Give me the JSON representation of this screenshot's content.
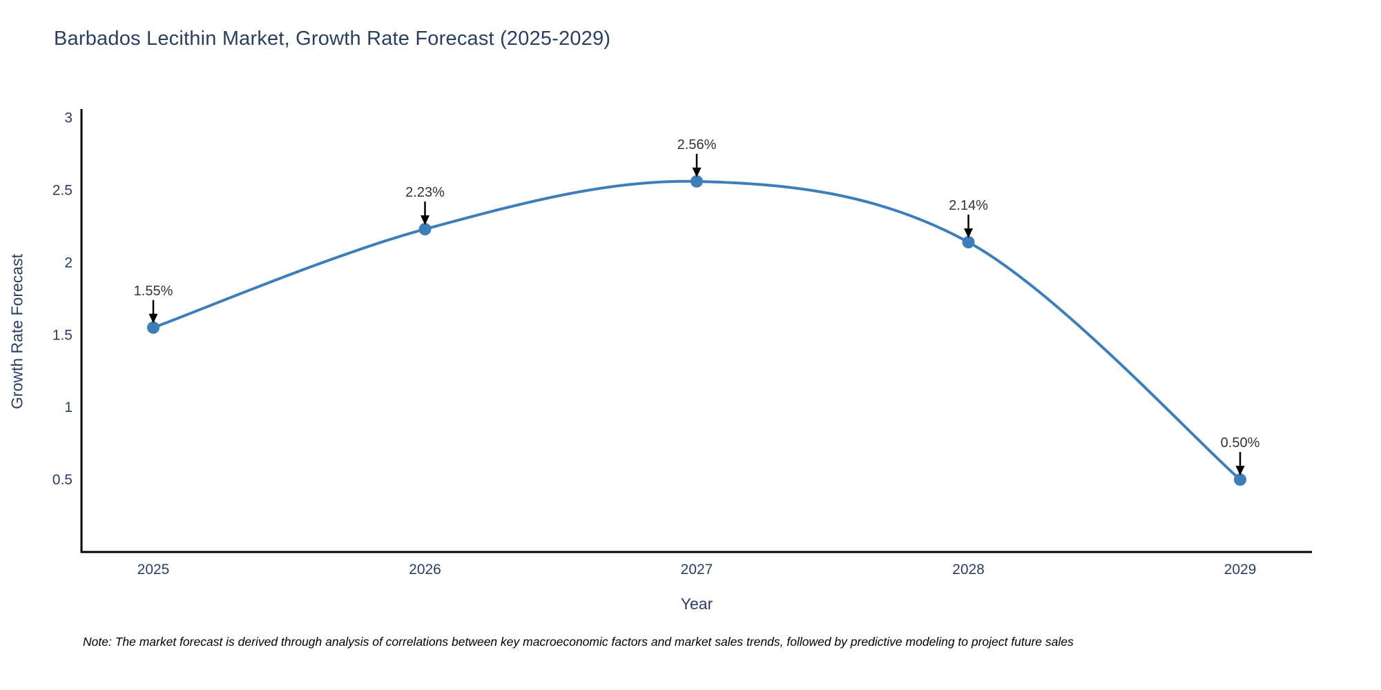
{
  "title": "Barbados Lecithin Market, Growth Rate Forecast (2025-2029)",
  "note": "Note: The market forecast is derived through analysis of correlations between key macroeconomic factors and market sales trends, followed by predictive modeling to project future sales",
  "chart_data": {
    "type": "line",
    "title": "Barbados Lecithin Market, Growth Rate Forecast (2025-2029)",
    "xlabel": "Year",
    "ylabel": "Growth Rate Forecast",
    "categories": [
      "2025",
      "2026",
      "2027",
      "2028",
      "2029"
    ],
    "series": [
      {
        "name": "Growth Rate Forecast",
        "values": [
          1.55,
          2.23,
          2.56,
          2.14,
          0.5
        ],
        "point_labels": [
          "1.55%",
          "2.23%",
          "2.56%",
          "2.14%",
          "0.50%"
        ]
      }
    ],
    "y_ticks": [
      3,
      2.5,
      2,
      1.5,
      1,
      0.5
    ],
    "ylim": [
      0,
      3.06
    ],
    "grid": false,
    "legend": "none",
    "smooth": true,
    "colors": {
      "line": "#3d7eb8",
      "marker": "#3d7eb8",
      "axis_line": "#000000",
      "axis_text": "#2a3f5f",
      "annotation_text": "#333333",
      "annotation_arrow": "#000000"
    }
  }
}
